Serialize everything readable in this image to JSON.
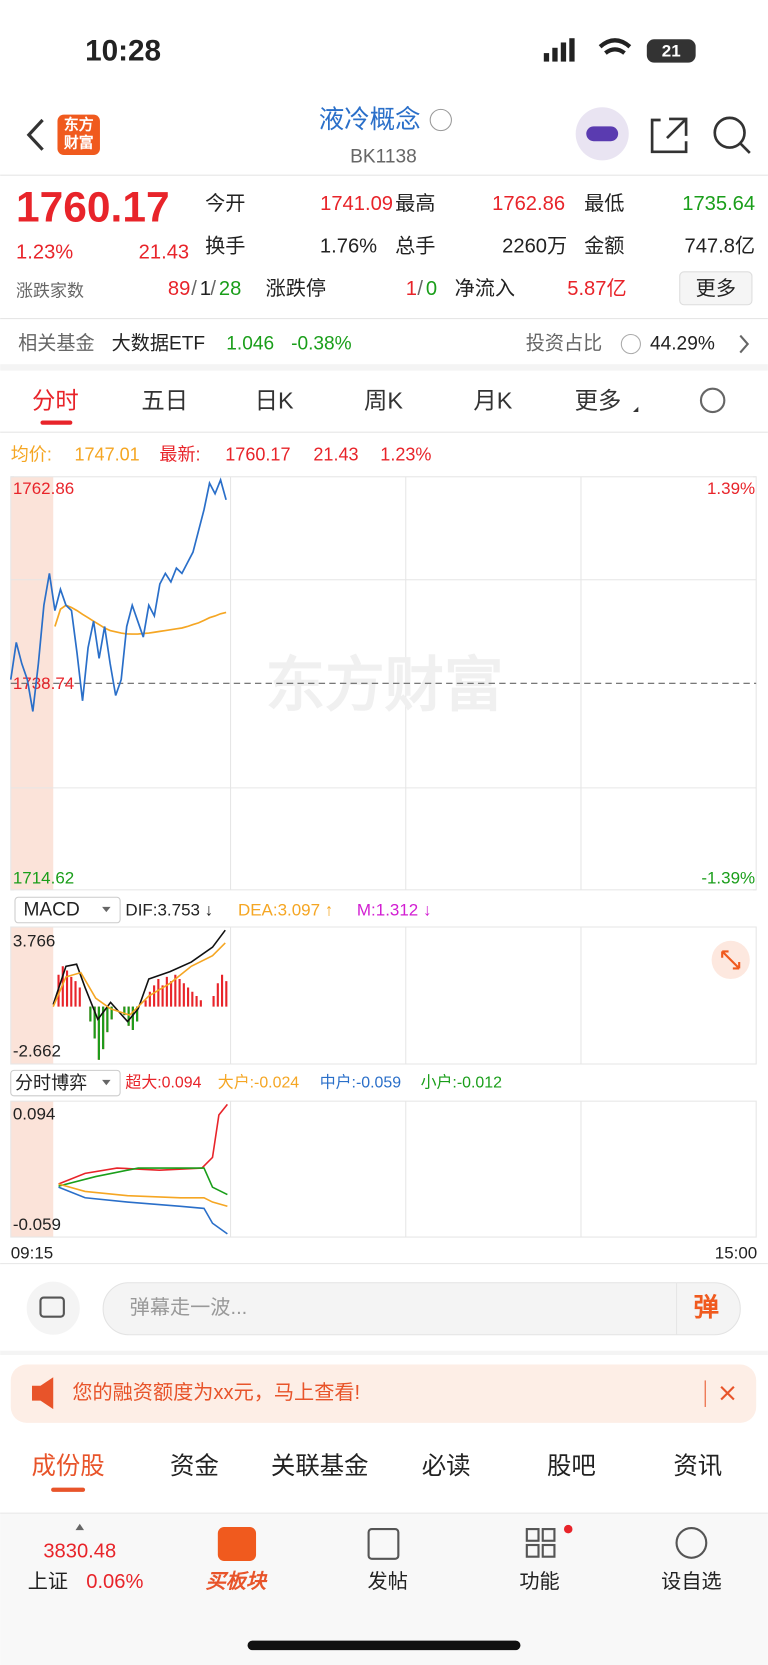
{
  "status_bar": {
    "time": "10:28",
    "battery": "21"
  },
  "header": {
    "logo": [
      "东方",
      "财富"
    ],
    "title": "液冷概念",
    "code": "BK1138"
  },
  "quote": {
    "price": "1760.17",
    "change_pct": "1.23%",
    "change": "21.43",
    "open_label": "今开",
    "open": "1741.09",
    "high_label": "最高",
    "high": "1762.86",
    "low_label": "最低",
    "low": "1735.64",
    "turnover_label": "换手",
    "turnover": "1.76%",
    "volume_label": "总手",
    "volume": "2260万",
    "amount_label": "金额",
    "amount": "747.8亿",
    "breadth_label": "涨跌家数",
    "up": "89",
    "flat": "1",
    "down": "28",
    "limit_label": "涨跌停",
    "limit_up": "1",
    "limit_down": "0",
    "net_inflow_label": "净流入",
    "net_inflow": "5.87亿",
    "more": "更多"
  },
  "fund": {
    "label": "相关基金",
    "name": "大数据ETF",
    "price": "1.046",
    "change": "-0.38%",
    "ratio_label": "投资占比",
    "ratio": "44.29%"
  },
  "tabs": [
    "分时",
    "五日",
    "日K",
    "周K",
    "月K",
    "更多"
  ],
  "summary": {
    "avg_label": "均价:",
    "avg": "1747.01",
    "latest_label": "最新:",
    "latest": "1760.17",
    "change": "21.43",
    "change_pct": "1.23%"
  },
  "intraday_chart": {
    "type": "line",
    "watermark": "东方财富",
    "ylim": [
      1714.62,
      1762.86
    ],
    "yticks": [
      1762.86,
      1738.74,
      1714.62
    ],
    "y2lim": [
      -1.39,
      1.39
    ],
    "y2ticks": [
      {
        "value": 1.39,
        "label": "1.39%"
      },
      {
        "value": -1.39,
        "label": "-1.39%"
      }
    ],
    "price_color": "#2a6fc9",
    "avg_color": "#f5a623",
    "price": [
      1739.17,
      1743.51,
      1741.03,
      1739.17,
      1735.45,
      1741.03,
      1747.85,
      1751.58,
      1747.23,
      1749.71,
      1747.85,
      1747.23,
      1742.27,
      1736.69,
      1742.89,
      1745.99,
      1741.65,
      1745.37,
      1741.03,
      1737.31,
      1739.17,
      1745.37,
      1747.85,
      1745.99,
      1744.13,
      1747.85,
      1746.61,
      1750.33,
      1751.58,
      1750.58,
      1752.2,
      1751.58,
      1752.82,
      1754.06,
      1756.54,
      1759.02,
      1762.12,
      1760.88,
      1762.49,
      1760.17
    ],
    "avg": [
      null,
      null,
      null,
      null,
      null,
      null,
      null,
      null,
      1745.37,
      1747.4,
      1747.85,
      1747.6,
      1747.23,
      1746.8,
      1746.4,
      1745.99,
      1745.6,
      1745.2,
      1744.9,
      1744.75,
      1744.6,
      1744.51,
      1744.5,
      1744.5,
      1744.55,
      1744.6,
      1744.7,
      1744.8,
      1744.9,
      1745.0,
      1745.1,
      1745.2,
      1745.37,
      1745.6,
      1745.8,
      1746.1,
      1746.4,
      1746.6,
      1746.86,
      1747.01
    ]
  },
  "macd": {
    "selector": "MACD",
    "dif": "DIF:3.753 ↓",
    "dea": "DEA:3.097 ↑",
    "m": "M:1.312 ↓",
    "ymax": "3.766",
    "ymin": "-2.662"
  },
  "flow": {
    "selector": "分时博弈",
    "super": "超大:0.094",
    "large": "大户:-0.024",
    "medium": "中户:-0.059",
    "small": "小户:-0.012",
    "ymax": "0.094",
    "ymin": "-0.059"
  },
  "time_axis": [
    "09:15",
    "15:00"
  ],
  "comment": {
    "placeholder": "弹幕走一波...",
    "button": "弹"
  },
  "banner": {
    "text": "您的融资额度为xx元，马上查看!"
  },
  "bottom_tabs": [
    "成份股",
    "资金",
    "关联基金",
    "必读",
    "股吧",
    "资讯"
  ],
  "nav": {
    "index_value": "3830.48",
    "index_name": "上证",
    "index_change": "0.06%",
    "items": [
      "买板块",
      "发帖",
      "功能",
      "设自选"
    ]
  }
}
